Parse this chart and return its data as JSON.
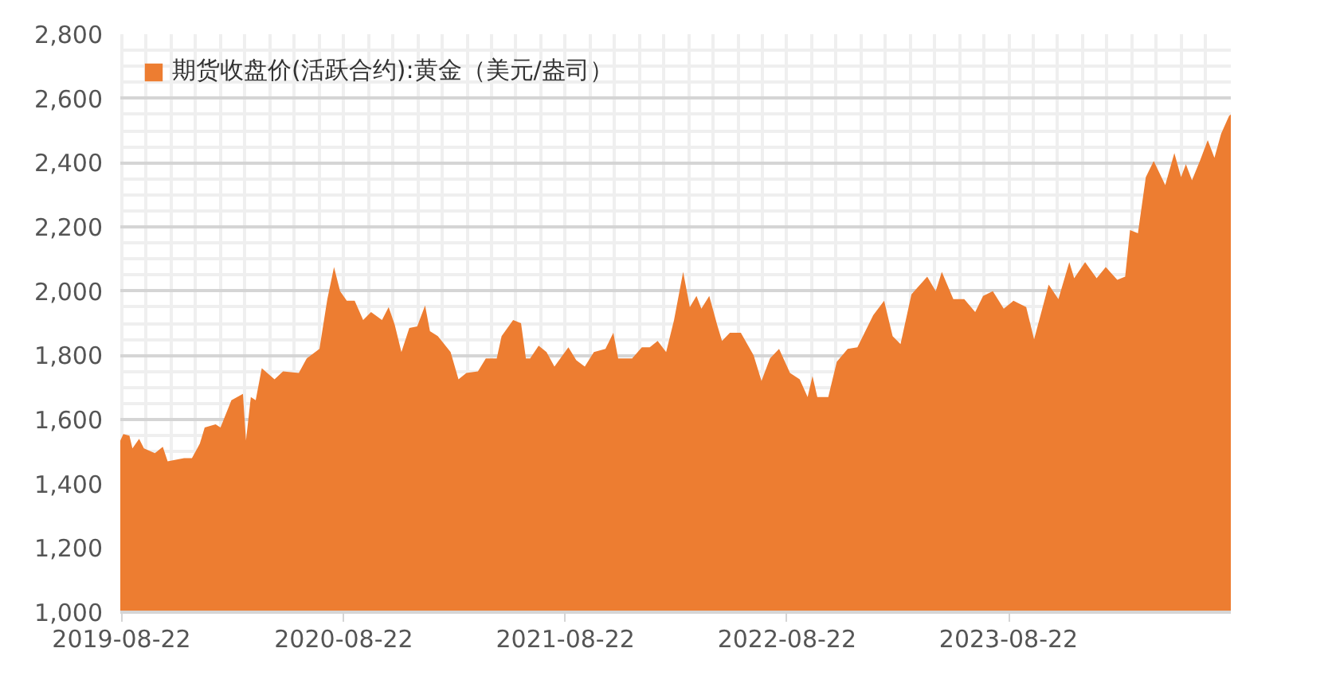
{
  "chart_data": {
    "type": "area",
    "x": [
      "2019-08-20",
      "2019-08-25",
      "2019-09-04",
      "2019-09-09",
      "2019-09-20",
      "2019-09-28",
      "2019-10-16",
      "2019-10-29",
      "2019-11-06",
      "2019-12-03",
      "2019-12-16",
      "2019-12-29",
      "2020-01-06",
      "2020-01-24",
      "2020-02-01",
      "2020-02-19",
      "2020-03-09",
      "2020-03-14",
      "2020-03-22",
      "2020-03-30",
      "2020-04-09",
      "2020-04-30",
      "2020-05-14",
      "2020-06-09",
      "2020-06-22",
      "2020-07-13",
      "2020-07-26",
      "2020-08-06",
      "2020-08-16",
      "2020-08-27",
      "2020-09-09",
      "2020-09-23",
      "2020-10-06",
      "2020-10-24",
      "2020-11-04",
      "2020-11-14",
      "2020-11-25",
      "2020-12-08",
      "2020-12-21",
      "2021-01-03",
      "2021-01-11",
      "2021-01-24",
      "2021-02-14",
      "2021-02-27",
      "2021-03-12",
      "2021-03-31",
      "2021-04-13",
      "2021-05-01",
      "2021-05-09",
      "2021-05-28",
      "2021-06-10",
      "2021-06-18",
      "2021-06-25",
      "2021-07-09",
      "2021-07-22",
      "2021-08-04",
      "2021-08-27",
      "2021-09-09",
      "2021-09-23",
      "2021-10-08",
      "2021-10-27",
      "2021-11-09",
      "2021-11-17",
      "2021-12-10",
      "2021-12-26",
      "2022-01-08",
      "2022-01-21",
      "2022-02-04",
      "2022-02-17",
      "2022-03-04",
      "2022-03-15",
      "2022-03-26",
      "2022-04-03",
      "2022-04-16",
      "2022-04-29",
      "2022-05-07",
      "2022-05-20",
      "2022-06-07",
      "2022-06-28",
      "2022-07-11",
      "2022-07-25",
      "2022-08-09",
      "2022-08-27",
      "2022-09-12",
      "2022-09-25",
      "2022-10-03",
      "2022-10-11",
      "2022-10-29",
      "2022-11-12",
      "2022-11-30",
      "2022-12-16",
      "2023-01-11",
      "2023-01-29",
      "2023-02-12",
      "2023-02-25",
      "2023-03-15",
      "2023-04-10",
      "2023-04-24",
      "2023-05-04",
      "2023-05-23",
      "2023-06-10",
      "2023-06-28",
      "2023-07-11",
      "2023-07-27",
      "2023-08-14",
      "2023-08-30",
      "2023-09-20",
      "2023-10-03",
      "2023-10-27",
      "2023-11-12",
      "2023-11-30",
      "2023-12-08",
      "2023-12-26",
      "2024-01-14",
      "2024-01-29",
      "2024-02-17",
      "2024-03-01",
      "2024-03-09",
      "2024-03-22",
      "2024-04-04",
      "2024-04-17",
      "2024-05-06",
      "2024-05-21",
      "2024-06-01",
      "2024-06-09",
      "2024-06-19",
      "2024-07-02",
      "2024-07-15",
      "2024-07-26",
      "2024-08-06",
      "2024-08-19",
      "2024-08-22"
    ],
    "series": [
      {
        "name": "期货收盘价(活跃合约):黄金（美元/盎司）",
        "color": "#ed7d31",
        "values": [
          1534,
          1555,
          1550,
          1510,
          1540,
          1510,
          1495,
          1515,
          1470,
          1480,
          1480,
          1525,
          1575,
          1585,
          1575,
          1660,
          1680,
          1535,
          1670,
          1660,
          1760,
          1725,
          1750,
          1745,
          1790,
          1820,
          1975,
          2075,
          2000,
          1970,
          1970,
          1910,
          1935,
          1910,
          1950,
          1895,
          1810,
          1885,
          1890,
          1955,
          1875,
          1860,
          1810,
          1725,
          1745,
          1750,
          1790,
          1790,
          1860,
          1910,
          1900,
          1790,
          1790,
          1830,
          1810,
          1765,
          1825,
          1785,
          1765,
          1810,
          1820,
          1870,
          1790,
          1790,
          1825,
          1825,
          1845,
          1810,
          1910,
          2060,
          1950,
          1985,
          1945,
          1985,
          1895,
          1845,
          1870,
          1870,
          1800,
          1720,
          1790,
          1820,
          1745,
          1725,
          1670,
          1735,
          1670,
          1670,
          1780,
          1820,
          1825,
          1925,
          1970,
          1860,
          1835,
          1990,
          2045,
          2000,
          2060,
          1975,
          1975,
          1935,
          1985,
          2000,
          1945,
          1970,
          1950,
          1850,
          2020,
          1975,
          2090,
          2040,
          2090,
          2040,
          2075,
          2035,
          2045,
          2190,
          2180,
          2355,
          2405,
          2330,
          2430,
          2355,
          2395,
          2345,
          2405,
          2470,
          2415,
          2490,
          2545,
          2550
        ]
      }
    ],
    "xlim": [
      "2019-08-20",
      "2024-08-22"
    ],
    "xticks": [
      "2019-08-22",
      "2020-08-22",
      "2021-08-22",
      "2022-08-22",
      "2023-08-22"
    ],
    "ylim": [
      1000,
      2800
    ],
    "yticks": [
      {
        "value": 1000,
        "label": "1,000"
      },
      {
        "value": 1200,
        "label": "1,200"
      },
      {
        "value": 1400,
        "label": "1,400"
      },
      {
        "value": 1600,
        "label": "1,600"
      },
      {
        "value": 1800,
        "label": "1,800"
      },
      {
        "value": 2000,
        "label": "2,000"
      },
      {
        "value": 2200,
        "label": "2,200"
      },
      {
        "value": 2400,
        "label": "2,400"
      },
      {
        "value": 2600,
        "label": "2,600"
      },
      {
        "value": 2800,
        "label": "2,800"
      }
    ],
    "grid": true,
    "legend": "top left"
  }
}
